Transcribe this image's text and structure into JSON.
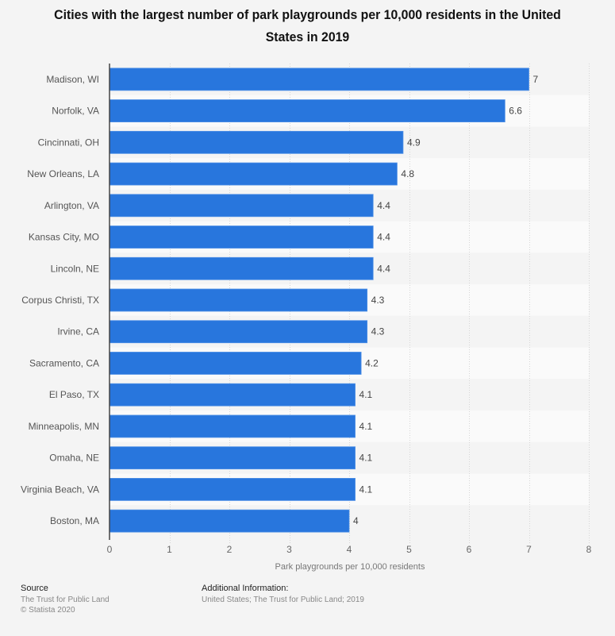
{
  "chart_data": {
    "type": "bar",
    "orientation": "horizontal",
    "title": "Cities with the largest number of park playgrounds per 10,000 residents in the United States in 2019",
    "categories": [
      "Madison, WI",
      "Norfolk, VA",
      "Cincinnati, OH",
      "New Orleans, LA",
      "Arlington, VA",
      "Kansas City, MO",
      "Lincoln, NE",
      "Corpus Christi, TX",
      "Irvine, CA",
      "Sacramento, CA",
      "El Paso, TX",
      "Minneapolis, MN",
      "Omaha, NE",
      "Virginia Beach, VA",
      "Boston, MA"
    ],
    "values": [
      7,
      6.6,
      4.9,
      4.8,
      4.4,
      4.4,
      4.4,
      4.3,
      4.3,
      4.2,
      4.1,
      4.1,
      4.1,
      4.1,
      4
    ],
    "value_labels": [
      "7",
      "6.6",
      "4.9",
      "4.8",
      "4.4",
      "4.4",
      "4.4",
      "4.3",
      "4.3",
      "4.2",
      "4.1",
      "4.1",
      "4.1",
      "4.1",
      "4"
    ],
    "xlabel": "Park playgrounds per 10,000 residents",
    "ylabel": "",
    "xlim": [
      0,
      8
    ],
    "xticks": [
      0,
      1,
      2,
      3,
      4,
      5,
      6,
      7,
      8
    ],
    "xtick_labels": [
      "0",
      "1",
      "2",
      "3",
      "4",
      "5",
      "6",
      "7",
      "8"
    ],
    "grid": true,
    "legend": "none",
    "bar_color": "#2876dd"
  },
  "footer": {
    "source_heading": "Source",
    "source_lines": [
      "The Trust for Public Land",
      "© Statista 2020"
    ],
    "additional_heading": "Additional Information:",
    "additional_lines": [
      "United States; The Trust for Public Land; 2019"
    ]
  }
}
